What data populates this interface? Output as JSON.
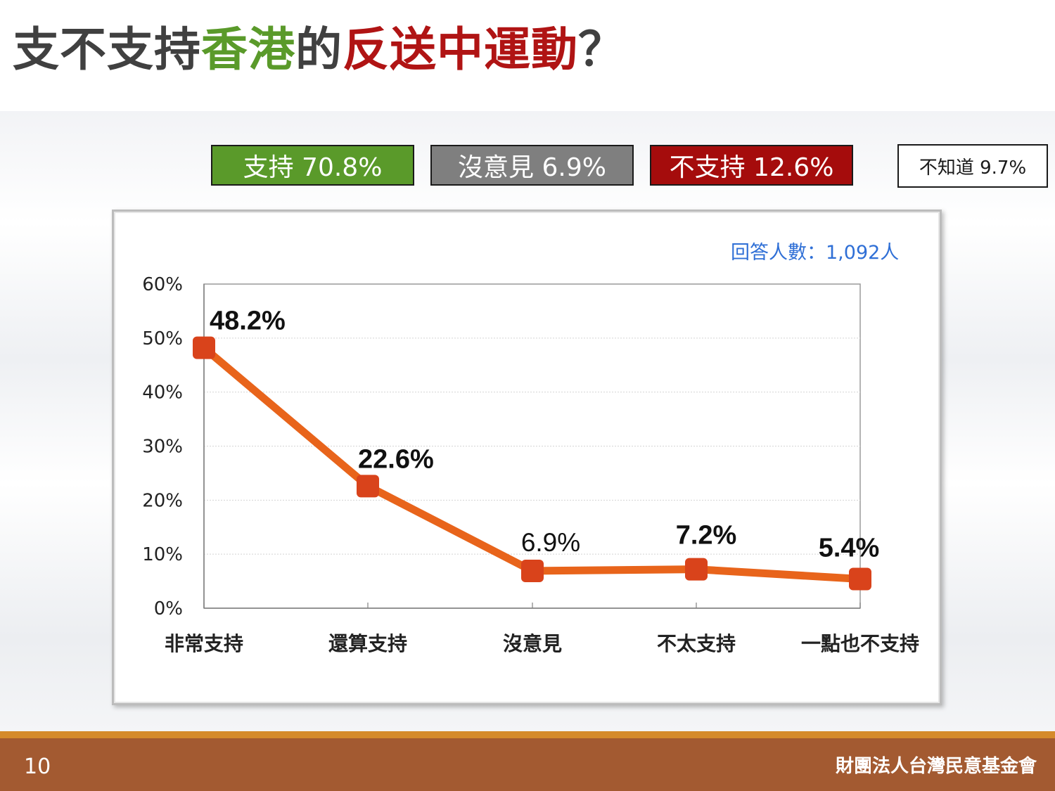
{
  "title": {
    "parts": [
      {
        "text": "支不支持",
        "color": "#404040"
      },
      {
        "text": "香港",
        "color": "#5a9a2a"
      },
      {
        "text": "的",
        "color": "#404040"
      },
      {
        "text": "反送中運動",
        "color": "#b01414"
      },
      {
        "text": "？",
        "color": "#404040"
      }
    ]
  },
  "summary": {
    "support": "支持 70.8%",
    "neutral": "沒意見 6.9%",
    "oppose": "不支持 12.6%",
    "unknown": "不知道 9.7%"
  },
  "respondents": "回答人數：1,092人",
  "chart_data": {
    "type": "line",
    "categories": [
      "非常支持",
      "還算支持",
      "沒意見",
      "不太支持",
      "一點也不支持"
    ],
    "series": [
      {
        "values": [
          48.2,
          22.6,
          6.9,
          7.2,
          5.4
        ],
        "color": "#e8641b"
      }
    ],
    "data_labels": [
      "48.2%",
      "22.6%",
      "6.9%",
      "7.2%",
      "5.4%"
    ],
    "y_ticks": [
      "0%",
      "10%",
      "20%",
      "30%",
      "40%",
      "50%",
      "60%"
    ],
    "ylim": [
      0,
      60
    ],
    "grid": true,
    "marker_color": "#d9431b"
  },
  "footer": {
    "page_number": "10",
    "organization": "財團法人台灣民意基金會"
  }
}
